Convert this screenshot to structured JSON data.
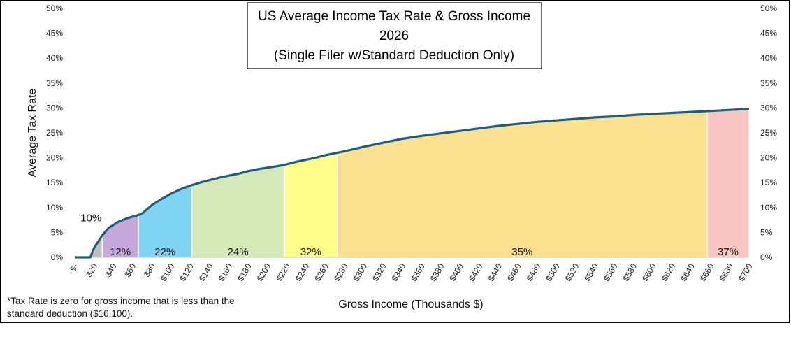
{
  "chart_data": {
    "type": "area",
    "title": [
      "US Average Income Tax Rate & Gross Income",
      "2026",
      "(Single Filer w/Standard Deduction Only)"
    ],
    "xlabel": "Gross Income (Thousands $)",
    "ylabel": "Average Tax Rate",
    "xlim": [
      0,
      700
    ],
    "ylim": [
      0,
      0.5
    ],
    "x_ticks": [
      "$-",
      "$20",
      "$40",
      "$60",
      "$80",
      "$100",
      "$120",
      "$140",
      "$160",
      "$180",
      "$200",
      "$220",
      "$240",
      "$260",
      "$280",
      "$300",
      "$320",
      "$340",
      "$360",
      "$380",
      "$400",
      "$420",
      "$440",
      "$460",
      "$480",
      "$500",
      "$520",
      "$540",
      "$560",
      "$580",
      "$600",
      "$620",
      "$640",
      "$660",
      "$680",
      "$700"
    ],
    "y_ticks": [
      "0%",
      "5%",
      "10%",
      "15%",
      "20%",
      "25%",
      "30%",
      "35%",
      "40%",
      "45%",
      "50%"
    ],
    "y_tick_values": [
      0,
      0.05,
      0.1,
      0.15,
      0.2,
      0.25,
      0.3,
      0.35,
      0.4,
      0.45,
      0.5
    ],
    "grid": false,
    "series": [
      {
        "x": [
          0,
          16.1,
          20,
          28.5,
          35,
          45,
          55,
          66,
          70,
          80,
          90,
          100,
          110,
          120,
          130,
          140,
          150,
          160,
          170,
          180,
          190,
          200,
          210,
          220,
          230,
          240,
          250,
          260,
          270,
          280,
          300,
          320,
          340,
          360,
          380,
          400,
          420,
          440,
          460,
          480,
          500,
          520,
          540,
          560,
          580,
          600,
          620,
          640,
          660,
          680,
          700
        ],
        "y": [
          0,
          0,
          0.019,
          0.044,
          0.059,
          0.071,
          0.079,
          0.085,
          0.088,
          0.105,
          0.117,
          0.128,
          0.137,
          0.144,
          0.15,
          0.155,
          0.16,
          0.164,
          0.168,
          0.173,
          0.177,
          0.18,
          0.183,
          0.187,
          0.192,
          0.196,
          0.2,
          0.205,
          0.209,
          0.213,
          0.222,
          0.23,
          0.238,
          0.244,
          0.249,
          0.254,
          0.259,
          0.264,
          0.268,
          0.272,
          0.275,
          0.278,
          0.281,
          0.283,
          0.286,
          0.288,
          0.29,
          0.292,
          0.294,
          0.296,
          0.298
        ]
      }
    ],
    "brackets": [
      {
        "label": "10%",
        "from": 16.1,
        "to": 28.5,
        "color": "#c3bcbc"
      },
      {
        "label": "12%",
        "from": 28.5,
        "to": 66,
        "color": "#c5a7dc"
      },
      {
        "label": "22%",
        "from": 66,
        "to": 121.5,
        "color": "#7fd3f3"
      },
      {
        "label": "24%",
        "from": 121.5,
        "to": 217.5,
        "color": "#d4e9b7"
      },
      {
        "label": "32%",
        "from": 217.5,
        "to": 272.5,
        "color": "#fdfd8a"
      },
      {
        "label": "35%",
        "from": 272.5,
        "to": 656.5,
        "color": "#fbe08f"
      },
      {
        "label": "37%",
        "from": 656.5,
        "to": 700,
        "color": "#fac6c4"
      }
    ],
    "line_color": "#1f5f7a"
  },
  "footnote": "*Tax Rate is zero for gross income that is less than the standard deduction ($16,100)."
}
